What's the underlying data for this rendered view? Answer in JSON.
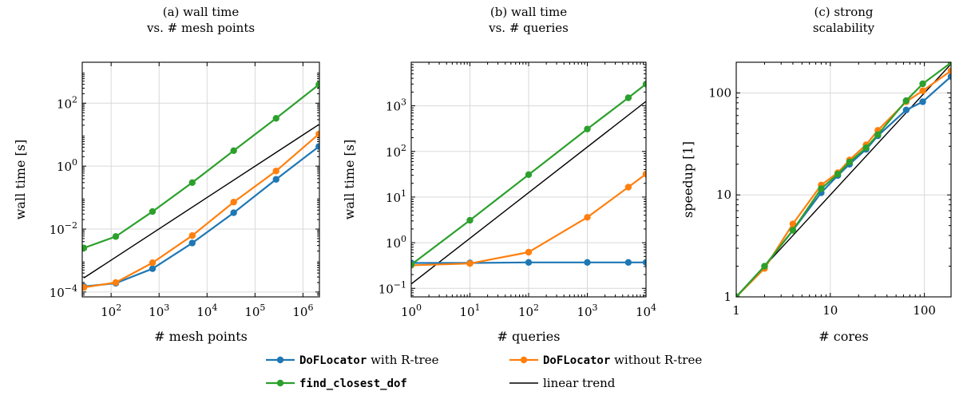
{
  "chart_data": [
    {
      "type": "line",
      "title_lines": [
        "(a) wall time",
        "vs. # mesh points"
      ],
      "xlabel": "# mesh points",
      "ylabel": "wall time [s]",
      "xscale": "log",
      "yscale": "log",
      "xlim": [
        25,
        2200000
      ],
      "ylim": [
        7e-05,
        2000
      ],
      "grid": true,
      "x_ticks": [
        {
          "value": 100,
          "base": "10",
          "exp": "2"
        },
        {
          "value": 1000,
          "base": "10",
          "exp": "3"
        },
        {
          "value": 10000,
          "base": "10",
          "exp": "4"
        },
        {
          "value": 100000,
          "base": "10",
          "exp": "5"
        },
        {
          "value": 1000000,
          "base": "10",
          "exp": "6"
        }
      ],
      "y_ticks": [
        {
          "value": 0.0001,
          "base": "10",
          "exp": "−4"
        },
        {
          "value": 0.01,
          "base": "10",
          "exp": "−2"
        },
        {
          "value": 1,
          "base": "10",
          "exp": "0"
        },
        {
          "value": 100,
          "base": "10",
          "exp": "2"
        }
      ],
      "series": [
        {
          "key": "rtree",
          "x": [
            27,
            125,
            729,
            4913,
            35937,
            274625,
            2146689
          ],
          "y": [
            0.00015,
            0.00019,
            0.00055,
            0.0036,
            0.033,
            0.38,
            4.2
          ]
        },
        {
          "key": "nortree",
          "x": [
            27,
            125,
            729,
            4913,
            35937,
            274625,
            2146689
          ],
          "y": [
            0.00014,
            0.0002,
            0.00085,
            0.0062,
            0.072,
            0.7,
            10.5
          ]
        },
        {
          "key": "closest",
          "x": [
            27,
            125,
            729,
            4913,
            35937,
            274625,
            2146689
          ],
          "y": [
            0.0025,
            0.0058,
            0.036,
            0.3,
            3.1,
            33,
            390
          ]
        },
        {
          "key": "linear",
          "x": [
            27,
            2146689
          ],
          "y": [
            0.00028,
            21
          ]
        }
      ]
    },
    {
      "type": "line",
      "title_lines": [
        "(b) wall time",
        "vs. # queries"
      ],
      "xlabel": "# queries",
      "ylabel": "wall time [s]",
      "xscale": "log",
      "yscale": "log",
      "xlim": [
        1,
        10000
      ],
      "ylim": [
        0.065,
        9000
      ],
      "grid": true,
      "x_ticks": [
        {
          "value": 1,
          "base": "10",
          "exp": "0"
        },
        {
          "value": 10,
          "base": "10",
          "exp": "1"
        },
        {
          "value": 100,
          "base": "10",
          "exp": "2"
        },
        {
          "value": 1000,
          "base": "10",
          "exp": "3"
        },
        {
          "value": 10000,
          "base": "10",
          "exp": "4"
        }
      ],
      "y_ticks": [
        {
          "value": 0.1,
          "base": "10",
          "exp": "−1"
        },
        {
          "value": 1,
          "base": "10",
          "exp": "0"
        },
        {
          "value": 10,
          "base": "10",
          "exp": "1"
        },
        {
          "value": 100,
          "base": "10",
          "exp": "2"
        },
        {
          "value": 1000,
          "base": "10",
          "exp": "3"
        }
      ],
      "series": [
        {
          "key": "rtree",
          "x": [
            1,
            10,
            100,
            1000,
            5000,
            10000
          ],
          "y": [
            0.36,
            0.36,
            0.37,
            0.37,
            0.37,
            0.37
          ]
        },
        {
          "key": "nortree",
          "x": [
            1,
            10,
            100,
            1000,
            5000,
            10000
          ],
          "y": [
            0.32,
            0.35,
            0.62,
            3.6,
            16.5,
            32
          ]
        },
        {
          "key": "closest",
          "x": [
            1,
            10,
            100,
            1000,
            5000,
            10000
          ],
          "y": [
            0.33,
            3.1,
            31,
            310,
            1500,
            3000
          ]
        },
        {
          "key": "linear",
          "x": [
            1,
            10000
          ],
          "y": [
            0.125,
            1250
          ]
        }
      ]
    },
    {
      "type": "line",
      "title_lines": [
        "(c) strong",
        "scalability"
      ],
      "xlabel": "# cores",
      "ylabel": "speedup [1]",
      "xscale": "log",
      "yscale": "log",
      "xlim": [
        1,
        192
      ],
      "ylim": [
        1,
        200
      ],
      "grid": true,
      "x_ticks": [
        {
          "value": 1,
          "label": "1"
        },
        {
          "value": 10,
          "label": "10"
        },
        {
          "value": 100,
          "label": "100"
        }
      ],
      "y_ticks": [
        {
          "value": 1,
          "label": "1"
        },
        {
          "value": 10,
          "label": "10"
        },
        {
          "value": 100,
          "label": "100"
        }
      ],
      "series": [
        {
          "key": "rtree",
          "x": [
            1,
            2,
            4,
            8,
            12,
            16,
            24,
            32,
            64,
            96,
            192
          ],
          "y": [
            1,
            2,
            4.5,
            10.5,
            15.5,
            20,
            28,
            38,
            68,
            82,
            145
          ]
        },
        {
          "key": "nortree",
          "x": [
            1,
            2,
            4,
            8,
            12,
            16,
            24,
            32,
            64,
            96,
            192
          ],
          "y": [
            1,
            1.9,
            5.2,
            12.5,
            16.5,
            22,
            31,
            43,
            82,
            105,
            165
          ]
        },
        {
          "key": "closest",
          "x": [
            1,
            2,
            4,
            8,
            12,
            16,
            24,
            32,
            64,
            96,
            192
          ],
          "y": [
            1,
            2,
            4.5,
            11.5,
            16,
            21,
            29,
            39,
            84,
            123,
            198
          ]
        },
        {
          "key": "linear",
          "x": [
            1,
            192
          ],
          "y": [
            1,
            192
          ]
        }
      ]
    }
  ],
  "legend": {
    "placement": "bottom",
    "items": [
      {
        "key": "rtree",
        "code": "DoFLocator",
        "text": " with R-tree",
        "color": "#1f77b4",
        "marker": true
      },
      {
        "key": "nortree",
        "code": "DoFLocator",
        "text": " without R-tree",
        "color": "#ff7f0e",
        "marker": true
      },
      {
        "key": "closest",
        "code": "find_closest_dof",
        "text": "",
        "color": "#2ca02c",
        "marker": true
      },
      {
        "key": "linear",
        "code": "",
        "text": "linear trend",
        "color": "#000000",
        "marker": false
      }
    ]
  },
  "colors": {
    "rtree": "#1f77b4",
    "nortree": "#ff7f0e",
    "closest": "#2ca02c",
    "linear": "#000000"
  }
}
